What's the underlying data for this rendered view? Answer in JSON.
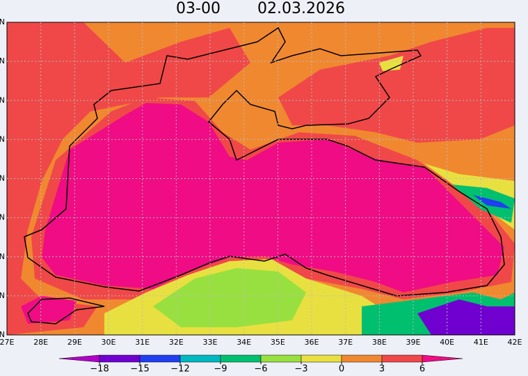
{
  "header": {
    "time": "03-00",
    "date": "02.03.2026"
  },
  "x_axis": {
    "labels": [
      "27E",
      "28E",
      "29E",
      "30E",
      "31E",
      "32E",
      "33E",
      "34E",
      "35E",
      "36E",
      "37E",
      "38E",
      "39E",
      "40E",
      "41E",
      "42E"
    ]
  },
  "y_axis": {
    "labels": [
      "N",
      "N",
      "N",
      "N",
      "N",
      "N",
      "N",
      "N",
      "N"
    ]
  },
  "colorbar": {
    "ticks": [
      {
        "value": -18,
        "label": "−18"
      },
      {
        "value": -15,
        "label": "−15"
      },
      {
        "value": -12,
        "label": "−12"
      },
      {
        "value": -9,
        "label": "−9"
      },
      {
        "value": -6,
        "label": "−6"
      },
      {
        "value": -3,
        "label": "−3"
      },
      0,
      3,
      6
    ],
    "colors": [
      "#b000c8",
      "#7000d0",
      "#2040f0",
      "#00b8c0",
      "#00c070",
      "#98e040",
      "#e8e040",
      "#f08830",
      "#f04848",
      "#f00c84"
    ]
  }
}
